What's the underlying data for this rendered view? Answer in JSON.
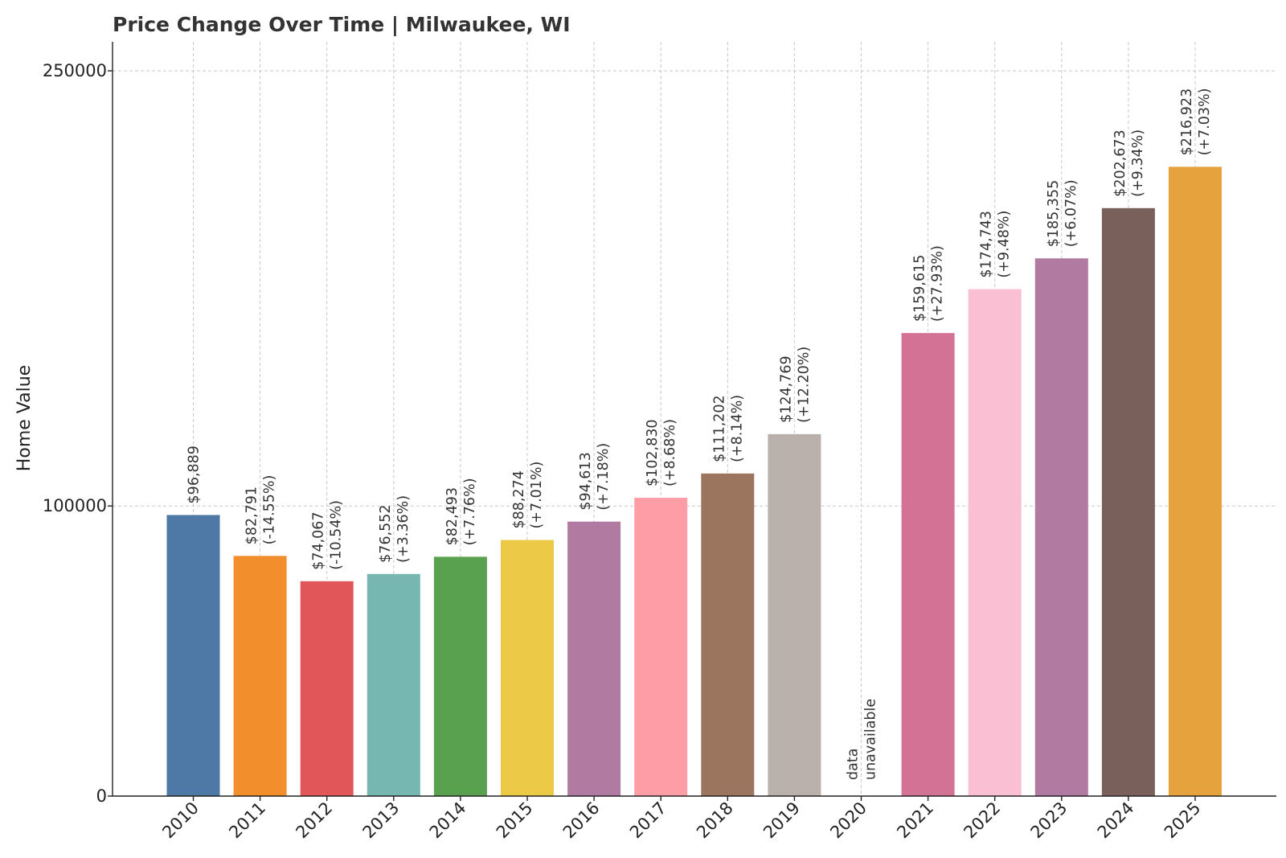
{
  "chart_data": {
    "type": "bar",
    "title": "Price Change Over Time | Milwaukee, WI",
    "xlabel": "",
    "ylabel": "Home Value",
    "categories": [
      "2010",
      "2011",
      "2012",
      "2013",
      "2014",
      "2015",
      "2016",
      "2017",
      "2018",
      "2019",
      "2020",
      "2021",
      "2022",
      "2023",
      "2024",
      "2025"
    ],
    "values": [
      96889,
      82791,
      74067,
      76552,
      82493,
      88274,
      94613,
      102830,
      111202,
      124769,
      null,
      159615,
      174743,
      185355,
      202673,
      216923
    ],
    "value_labels": [
      "$96,889",
      "$82,791",
      "$74,067",
      "$76,552",
      "$82,493",
      "$88,274",
      "$94,613",
      "$102,830",
      "$111,202",
      "$124,769",
      "data",
      "$159,615",
      "$174,743",
      "$185,355",
      "$202,673",
      "$216,923"
    ],
    "change_labels": [
      "",
      "(-14.55%)",
      "(-10.54%)",
      "(+3.36%)",
      "(+7.76%)",
      "(+7.01%)",
      "(+7.18%)",
      "(+8.68%)",
      "(+8.14%)",
      "(+12.20%)",
      "unavailable",
      "(+27.93%)",
      "(+9.48%)",
      "(+6.07%)",
      "(+9.34%)",
      "(+7.03%)"
    ],
    "colors": [
      "#4e79a7",
      "#f28e2b",
      "#e15759",
      "#76b7b2",
      "#59a14f",
      "#edc948",
      "#b07aa1",
      "#ff9da7",
      "#9c755f",
      "#bab0ac",
      "#ffffff",
      "#d37295",
      "#fabfd2",
      "#b07aa1",
      "#79605a",
      "#e6a23c"
    ],
    "yticks": [
      0,
      100000,
      250000
    ],
    "ytick_labels": [
      "0",
      "100000",
      "250000"
    ],
    "ylim": [
      0,
      260000
    ],
    "grid": true,
    "legend": "none"
  }
}
